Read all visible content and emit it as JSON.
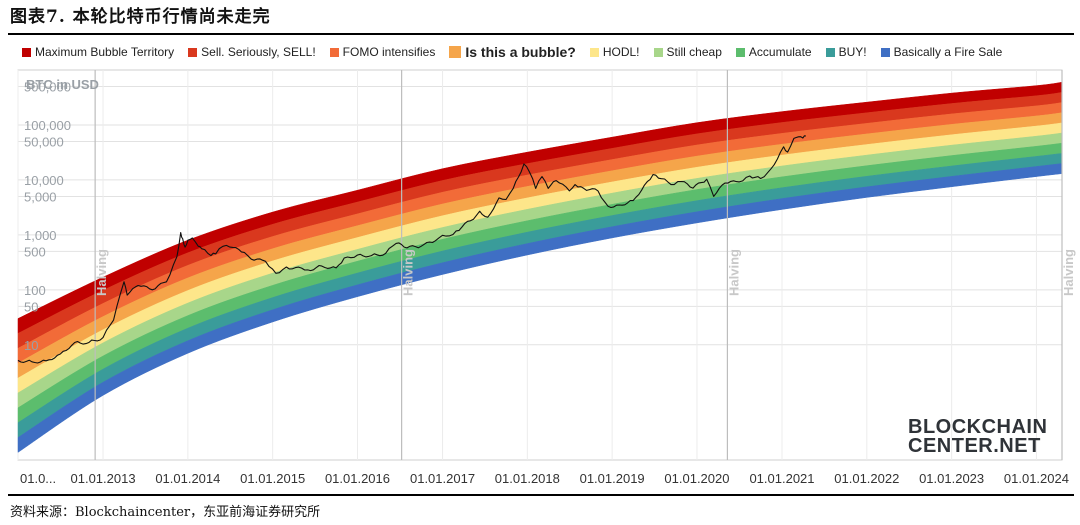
{
  "figure": {
    "title": "图表7.   本轮比特币行情尚未走完",
    "source": "资料来源：Blockchaincenter，东亚前海证券研究所"
  },
  "chart_data": {
    "type": "area",
    "title": "",
    "xlabel": "",
    "ylabel": "BTC in USD",
    "yscale": "log",
    "ylim": [
      0.08,
      1000000
    ],
    "xlim": [
      "2012-01-01",
      "2024-04-20"
    ],
    "grid": true,
    "legend_position": "top",
    "y_ticks": [
      "500,000",
      "100,000",
      "50,000",
      "10,000",
      "5,000",
      "1,000",
      "500",
      "100",
      "50",
      "10"
    ],
    "y_tick_values": [
      500000,
      100000,
      50000,
      10000,
      5000,
      1000,
      500,
      100,
      50,
      10
    ],
    "x_ticks": [
      "01.0...",
      "01.01.2013",
      "01.01.2014",
      "01.01.2015",
      "01.01.2016",
      "01.01.2017",
      "01.01.2018",
      "01.01.2019",
      "01.01.2020",
      "01.01.2021",
      "01.01.2022",
      "01.01.2023",
      "01.01.2024"
    ],
    "x_tick_dates": [
      "2012-01-01",
      "2013-01-01",
      "2014-01-01",
      "2015-01-01",
      "2016-01-01",
      "2017-01-01",
      "2018-01-01",
      "2019-01-01",
      "2020-01-01",
      "2021-01-01",
      "2022-01-01",
      "2023-01-01",
      "2024-01-01"
    ],
    "halving_label": "Halving",
    "halving_dates": [
      "2012-11-28",
      "2016-07-09",
      "2020-05-11",
      "2024-04-20"
    ],
    "bands": [
      {
        "name": "Maximum Bubble Territory",
        "color": "#c00000"
      },
      {
        "name": "Sell. Seriously, SELL!",
        "color": "#d9381e"
      },
      {
        "name": "FOMO intensifies",
        "color": "#f26b38"
      },
      {
        "name": "Is this a bubble?",
        "color": "#f5a54a"
      },
      {
        "name": "HODL!",
        "color": "#fde68a"
      },
      {
        "name": "Still cheap",
        "color": "#a8d68a"
      },
      {
        "name": "Accumulate",
        "color": "#5cbd6d"
      },
      {
        "name": "BUY!",
        "color": "#3a9c9a"
      },
      {
        "name": "Basically a Fire Sale",
        "color": "#3f6fc4"
      }
    ],
    "band_edges": {
      "top": [
        [
          "2012-01-01",
          30
        ],
        [
          "2013-01-01",
          170
        ],
        [
          "2014-01-01",
          800
        ],
        [
          "2015-01-01",
          2600
        ],
        [
          "2016-01-01",
          6500
        ],
        [
          "2017-01-01",
          16000
        ],
        [
          "2018-01-01",
          32000
        ],
        [
          "2019-01-01",
          60000
        ],
        [
          "2020-01-01",
          110000
        ],
        [
          "2021-01-01",
          175000
        ],
        [
          "2022-01-01",
          260000
        ],
        [
          "2023-01-01",
          380000
        ],
        [
          "2024-01-01",
          520000
        ],
        [
          "2024-04-20",
          600000
        ]
      ],
      "bottom": [
        [
          "2012-01-01",
          0.11
        ],
        [
          "2013-01-01",
          1.2
        ],
        [
          "2014-01-01",
          7
        ],
        [
          "2015-01-01",
          26
        ],
        [
          "2016-01-01",
          75
        ],
        [
          "2017-01-01",
          190
        ],
        [
          "2018-01-01",
          430
        ],
        [
          "2019-01-01",
          880
        ],
        [
          "2020-01-01",
          1650
        ],
        [
          "2021-01-01",
          2900
        ],
        [
          "2022-01-01",
          4800
        ],
        [
          "2023-01-01",
          7500
        ],
        [
          "2024-01-01",
          11500
        ],
        [
          "2024-04-20",
          13000
        ]
      ]
    },
    "series": [
      {
        "values": [
          [
            "2012-01-01",
            5.2
          ],
          [
            "2012-03-01",
            4.9
          ],
          [
            "2012-05-01",
            5.1
          ],
          [
            "2012-07-01",
            6.8
          ],
          [
            "2012-09-01",
            11
          ],
          [
            "2012-11-01",
            11
          ],
          [
            "2013-01-01",
            13.5
          ],
          [
            "2013-02-15",
            28
          ],
          [
            "2013-04-01",
            140
          ],
          [
            "2013-04-15",
            80
          ],
          [
            "2013-06-01",
            120
          ],
          [
            "2013-08-01",
            100
          ],
          [
            "2013-10-01",
            140
          ],
          [
            "2013-11-15",
            400
          ],
          [
            "2013-12-01",
            1100
          ],
          [
            "2013-12-10",
            850
          ],
          [
            "2013-12-20",
            600
          ],
          [
            "2014-01-01",
            800
          ],
          [
            "2014-01-20",
            880
          ],
          [
            "2014-02-15",
            620
          ],
          [
            "2014-03-01",
            560
          ],
          [
            "2014-04-10",
            420
          ],
          [
            "2014-05-01",
            450
          ],
          [
            "2014-06-01",
            620
          ],
          [
            "2014-07-01",
            600
          ],
          [
            "2014-09-01",
            480
          ],
          [
            "2014-10-01",
            360
          ],
          [
            "2014-12-01",
            330
          ],
          [
            "2015-01-15",
            200
          ],
          [
            "2015-03-01",
            260
          ],
          [
            "2015-06-01",
            230
          ],
          [
            "2015-08-01",
            270
          ],
          [
            "2015-10-01",
            250
          ],
          [
            "2015-11-05",
            380
          ],
          [
            "2016-01-01",
            430
          ],
          [
            "2016-03-01",
            420
          ],
          [
            "2016-05-01",
            460
          ],
          [
            "2016-06-15",
            700
          ],
          [
            "2016-08-01",
            580
          ],
          [
            "2016-10-01",
            620
          ],
          [
            "2016-12-01",
            780
          ],
          [
            "2017-01-01",
            980
          ],
          [
            "2017-02-01",
            960
          ],
          [
            "2017-03-01",
            1180
          ],
          [
            "2017-05-01",
            1800
          ],
          [
            "2017-06-10",
            2700
          ],
          [
            "2017-07-15",
            2100
          ],
          [
            "2017-09-01",
            4700
          ],
          [
            "2017-10-01",
            4400
          ],
          [
            "2017-11-01",
            7000
          ],
          [
            "2017-12-17",
            19500
          ],
          [
            "2018-01-10",
            14000
          ],
          [
            "2018-02-06",
            7000
          ],
          [
            "2018-03-05",
            11500
          ],
          [
            "2018-04-01",
            7000
          ],
          [
            "2018-05-05",
            9700
          ],
          [
            "2018-07-01",
            6300
          ],
          [
            "2018-07-25",
            8200
          ],
          [
            "2018-09-01",
            7000
          ],
          [
            "2018-11-01",
            6300
          ],
          [
            "2018-12-15",
            3300
          ],
          [
            "2019-02-01",
            3500
          ],
          [
            "2019-04-01",
            4200
          ],
          [
            "2019-05-20",
            8000
          ],
          [
            "2019-06-26",
            12500
          ],
          [
            "2019-08-01",
            10500
          ],
          [
            "2019-09-25",
            8200
          ],
          [
            "2019-10-26",
            9300
          ],
          [
            "2019-12-15",
            7100
          ],
          [
            "2020-02-12",
            10300
          ],
          [
            "2020-03-13",
            5000
          ],
          [
            "2020-05-01",
            8800
          ],
          [
            "2020-07-01",
            9200
          ],
          [
            "2020-08-15",
            11800
          ],
          [
            "2020-10-01",
            10600
          ],
          [
            "2020-11-15",
            16000
          ],
          [
            "2021-01-08",
            40000
          ],
          [
            "2021-01-25",
            32000
          ],
          [
            "2021-02-21",
            57000
          ],
          [
            "2021-03-13",
            61000
          ],
          [
            "2021-04-01",
            58000
          ],
          [
            "2021-04-14",
            63000
          ]
        ]
      }
    ]
  },
  "legend_highlight": "Is this a bubble?",
  "logo": {
    "line1": "BLOCKCHAIN",
    "line2": "CENTER.NET"
  }
}
